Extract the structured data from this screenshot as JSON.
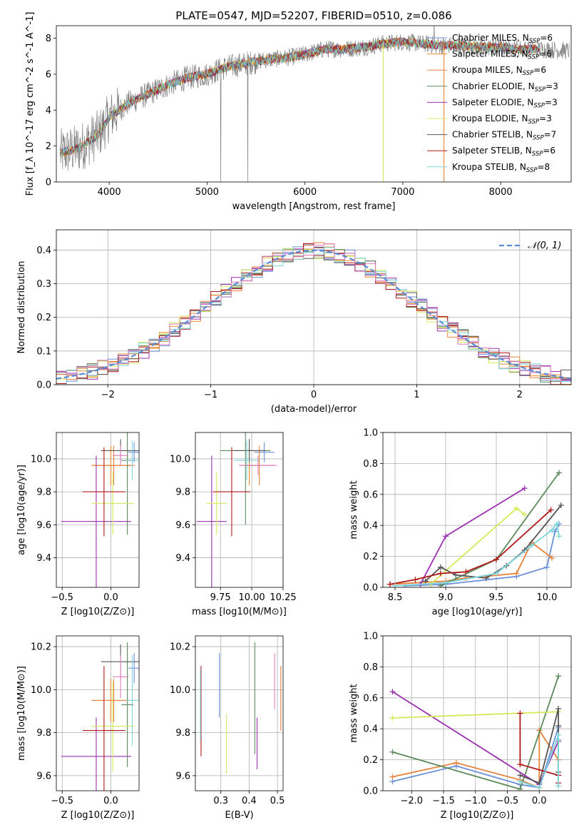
{
  "figure_title": "PLATE=0547, MJD=52207, FIBERID=0510, z=0.086",
  "palette": {
    "Chabrier MILES": "#6a8fd8",
    "Salpeter MILES": "#e9872f",
    "Kroupa MILES": "#e8813a",
    "Chabrier ELODIE": "#5a8a5a",
    "Salpeter ELODIE": "#9b30b0",
    "Kroupa ELODIE": "#d7e85a",
    "Chabrier STELIB": "#555555",
    "Salpeter STELIB": "#b01818",
    "Kroupa STELIB": "#7dd6dc",
    "data": "#808080",
    "normal": "#5b8ad6",
    "extra_pink": "#e07fbf"
  },
  "chart_data": [
    {
      "id": "spectrum",
      "type": "line",
      "title": "PLATE=0547, MJD=52207, FIBERID=0510, z=0.086",
      "xlabel": "wavelength [Angstrom, rest frame]",
      "ylabel": "Flux [f_λ 10^-17 erg cm^-2 s^-1 A^-1]",
      "xlim": [
        3460,
        8720
      ],
      "ylim": [
        0,
        8.7
      ],
      "xticks": [
        4000,
        5000,
        6000,
        7000,
        8000
      ],
      "yticks": [
        0,
        2,
        4,
        6,
        8
      ],
      "grid": false,
      "legend_position": "top-right",
      "legend": [
        {
          "name": "Chabrier MILES",
          "nssp": "6"
        },
        {
          "name": "Salpeter MILES",
          "nssp": "6"
        },
        {
          "name": "Kroupa MILES",
          "nssp": "6"
        },
        {
          "name": "Chabrier ELODIE",
          "nssp": "3"
        },
        {
          "name": "Salpeter ELODIE",
          "nssp": "3"
        },
        {
          "name": "Kroupa ELODIE",
          "nssp": "3"
        },
        {
          "name": "Chabrier STELIB",
          "nssp": "7"
        },
        {
          "name": "Salpeter STELIB",
          "nssp": "6"
        },
        {
          "name": "Kroupa STELIB",
          "nssp": "8"
        }
      ],
      "continuum_x": [
        3500,
        3700,
        3900,
        4000,
        4200,
        4400,
        4600,
        4800,
        5000,
        5200,
        5400,
        5600,
        5800,
        6000,
        6200,
        6400,
        6600,
        6800,
        7000,
        7200,
        7400,
        7600,
        7800,
        8000,
        8200,
        8400,
        8700
      ],
      "continuum_y": [
        1.6,
        1.9,
        2.7,
        3.6,
        4.4,
        4.9,
        5.4,
        5.8,
        6.0,
        6.4,
        6.6,
        6.8,
        6.9,
        7.1,
        7.4,
        7.4,
        7.5,
        7.7,
        7.8,
        7.7,
        7.6,
        7.6,
        7.5,
        7.5,
        7.4,
        7.4,
        7.3
      ],
      "model_max_x": 8400
    },
    {
      "id": "residuals",
      "type": "histogram",
      "xlabel": "(data-model)/error",
      "ylabel": "Normed distribution",
      "xlim": [
        -2.5,
        2.5
      ],
      "ylim": [
        0,
        0.46
      ],
      "xticks": [
        -2,
        -1,
        0,
        1,
        2
      ],
      "yticks": [
        0.0,
        0.1,
        0.2,
        0.3,
        0.4
      ],
      "grid": true,
      "legend_position": "top-right",
      "legend": [
        {
          "name": "𝒩(0, 1)"
        }
      ],
      "bin_width": 0.1,
      "reference": {
        "type": "normal",
        "mean": 0,
        "sigma": 1
      }
    },
    {
      "id": "age_vs_Z",
      "type": "errorbar",
      "xlabel": "Z [log10(Z/Z⊙)]",
      "ylabel": "age [log10(age/yr)]",
      "xlim": [
        -0.56,
        0.29
      ],
      "ylim": [
        9.22,
        10.16
      ],
      "xticks": [
        -0.5,
        0.0
      ],
      "yticks": [
        9.4,
        9.6,
        9.8,
        10.0
      ],
      "grid": true,
      "points": [
        {
          "model": "Chabrier MILES",
          "x": 0.24,
          "xerr": 0.06,
          "y": 10.04,
          "yerr": 0.06
        },
        {
          "model": "Salpeter MILES",
          "x": 0.0,
          "xerr": 0.2,
          "y": 9.96,
          "yerr": 0.12
        },
        {
          "model": "Kroupa MILES",
          "x": 0.03,
          "xerr": 0.22,
          "y": 9.96,
          "yerr": 0.12
        },
        {
          "model": "Chabrier ELODIE",
          "x": 0.17,
          "xerr": 0.06,
          "y": 9.99,
          "yerr": 0.45
        },
        {
          "model": "Salpeter ELODIE",
          "x": -0.15,
          "xerr": 0.36,
          "y": 9.62,
          "yerr": 0.4
        },
        {
          "model": "Kroupa ELODIE",
          "x": 0.02,
          "xerr": 0.22,
          "y": 9.73,
          "yerr": 0.19
        },
        {
          "model": "Chabrier STELIB",
          "x": 0.1,
          "xerr": 0.2,
          "y": 10.05,
          "yerr": 0.07
        },
        {
          "model": "Salpeter STELIB",
          "x": -0.07,
          "xerr": 0.22,
          "y": 9.8,
          "yerr": 0.27
        },
        {
          "model": "Kroupa STELIB",
          "x": 0.22,
          "xerr": 0.06,
          "y": 9.99,
          "yerr": 0.12
        },
        {
          "model": "extra_pink",
          "x": 0.1,
          "xerr": 0.08,
          "y": 10.02,
          "yerr": 0.06
        }
      ]
    },
    {
      "id": "age_vs_mass",
      "type": "errorbar",
      "xlabel": "mass [log10(M/M⊙)]",
      "ylabel": "",
      "xlim": [
        9.55,
        10.25
      ],
      "ylim": [
        9.22,
        10.16
      ],
      "xticks": [
        9.75,
        10.0,
        10.25
      ],
      "yticks": [
        9.4,
        9.6,
        9.8,
        10.0
      ],
      "grid": true,
      "points": [
        {
          "model": "Chabrier MILES",
          "x": 10.1,
          "xerr": 0.08,
          "y": 10.04,
          "yerr": 0.06
        },
        {
          "model": "Salpeter MILES",
          "x": 9.98,
          "xerr": 0.08,
          "y": 9.96,
          "yerr": 0.12
        },
        {
          "model": "Kroupa MILES",
          "x": 10.06,
          "xerr": 0.12,
          "y": 9.96,
          "yerr": 0.12
        },
        {
          "model": "Chabrier ELODIE",
          "x": 9.95,
          "xerr": 0.2,
          "y": 10.05,
          "yerr": 0.45
        },
        {
          "model": "Salpeter ELODIE",
          "x": 9.68,
          "xerr": 0.12,
          "y": 9.62,
          "yerr": 0.4
        },
        {
          "model": "Kroupa ELODIE",
          "x": 9.72,
          "xerr": 0.08,
          "y": 9.73,
          "yerr": 0.19
        },
        {
          "model": "Chabrier STELIB",
          "x": 9.98,
          "xerr": 0.13,
          "y": 10.05,
          "yerr": 0.07
        },
        {
          "model": "Salpeter STELIB",
          "x": 9.84,
          "xerr": 0.15,
          "y": 9.8,
          "yerr": 0.27
        },
        {
          "model": "Kroupa STELIB",
          "x": 9.96,
          "xerr": 0.1,
          "y": 9.99,
          "yerr": 0.12
        },
        {
          "model": "extra_pink",
          "x": 10.05,
          "xerr": 0.15,
          "y": 9.96,
          "yerr": 0.06
        }
      ]
    },
    {
      "id": "weight_vs_age",
      "type": "line",
      "xlabel": "age [log10(age/yr)]",
      "ylabel": "mass weight",
      "xlim": [
        8.38,
        10.24
      ],
      "ylim": [
        0,
        1.0
      ],
      "xticks": [
        8.5,
        9.0,
        9.5,
        10.0
      ],
      "yticks": [
        0.0,
        0.2,
        0.4,
        0.6,
        0.8,
        1.0
      ],
      "grid": true,
      "series": [
        {
          "model": "Chabrier MILES",
          "x": [
            8.6,
            9.0,
            9.7,
            10.0,
            10.08,
            10.12
          ],
          "y": [
            0.01,
            0.02,
            0.07,
            0.13,
            0.36,
            0.41
          ]
        },
        {
          "model": "Kroupa MILES",
          "x": [
            8.45,
            9.0,
            9.2,
            9.7,
            9.85,
            10.05
          ],
          "y": [
            0.02,
            0.04,
            0.06,
            0.09,
            0.29,
            0.19
          ]
        },
        {
          "model": "Chabrier ELODIE",
          "x": [
            8.95,
            9.5,
            10.12
          ],
          "y": [
            0.01,
            0.18,
            0.74
          ]
        },
        {
          "model": "Salpeter ELODIE",
          "x": [
            8.75,
            9.0,
            9.78
          ],
          "y": [
            0.02,
            0.33,
            0.64
          ]
        },
        {
          "model": "Kroupa ELODIE",
          "x": [
            8.85,
            9.7,
            9.78
          ],
          "y": [
            0.02,
            0.51,
            0.47
          ]
        },
        {
          "model": "Chabrier STELIB",
          "x": [
            8.8,
            8.95,
            9.1,
            9.4,
            9.6,
            9.78,
            10.14
          ],
          "y": [
            0.04,
            0.13,
            0.08,
            0.06,
            0.14,
            0.24,
            0.53
          ]
        },
        {
          "model": "Salpeter STELIB",
          "x": [
            8.45,
            8.7,
            8.95,
            9.2,
            9.5,
            10.04
          ],
          "y": [
            0.02,
            0.05,
            0.09,
            0.1,
            0.18,
            0.5
          ]
        },
        {
          "model": "Kroupa STELIB",
          "x": [
            8.5,
            9.0,
            9.5,
            9.85,
            10.05,
            10.1,
            10.12
          ],
          "y": [
            0.01,
            0.03,
            0.09,
            0.27,
            0.37,
            0.41,
            0.33
          ]
        }
      ]
    },
    {
      "id": "mass_vs_Z",
      "type": "errorbar",
      "xlabel": "Z [log10(Z/Z⊙)]",
      "ylabel": "mass [log10(M/M⊙)]",
      "xlim": [
        -0.56,
        0.29
      ],
      "ylim": [
        9.53,
        10.25
      ],
      "xticks": [
        -0.5,
        0.0
      ],
      "yticks": [
        9.6,
        9.8,
        10.0,
        10.2
      ],
      "grid": true,
      "points": [
        {
          "model": "Chabrier MILES",
          "x": 0.24,
          "xerr": 0.06,
          "y": 10.1,
          "yerr": 0.07
        },
        {
          "model": "Salpeter MILES",
          "x": 0.0,
          "xerr": 0.2,
          "y": 9.95,
          "yerr": 0.1
        },
        {
          "model": "Kroupa MILES",
          "x": 0.03,
          "xerr": 0.22,
          "y": 9.95,
          "yerr": 0.1
        },
        {
          "model": "Chabrier ELODIE",
          "x": 0.17,
          "xerr": 0.06,
          "y": 9.93,
          "yerr": 0.29
        },
        {
          "model": "Salpeter ELODIE",
          "x": -0.15,
          "xerr": 0.36,
          "y": 9.69,
          "yerr": 0.18
        },
        {
          "model": "Kroupa ELODIE",
          "x": 0.02,
          "xerr": 0.22,
          "y": 9.83,
          "yerr": 0.21
        },
        {
          "model": "Chabrier STELIB",
          "x": 0.1,
          "xerr": 0.2,
          "y": 10.13,
          "yerr": 0.08
        },
        {
          "model": "Salpeter STELIB",
          "x": -0.07,
          "xerr": 0.22,
          "y": 9.81,
          "yerr": 0.3
        },
        {
          "model": "Kroupa STELIB",
          "x": 0.22,
          "xerr": 0.06,
          "y": 9.95,
          "yerr": 0.21
        },
        {
          "model": "extra_pink",
          "x": 0.1,
          "xerr": 0.08,
          "y": 10.06,
          "yerr": 0.1
        }
      ]
    },
    {
      "id": "mass_vs_ebv",
      "type": "errorbar",
      "xlabel": "E(B-V)",
      "ylabel": "",
      "xlim": [
        0.21,
        0.52
      ],
      "ylim": [
        9.53,
        10.25
      ],
      "xticks": [
        0.3,
        0.4,
        0.5
      ],
      "yticks": [
        9.6,
        9.8,
        10.0,
        10.2
      ],
      "grid": true,
      "points": [
        {
          "model": "Chabrier MILES",
          "x": 0.295,
          "y": 10.02,
          "yerr": 0.15
        },
        {
          "model": "Kroupa MILES",
          "x": 0.512,
          "y": 9.96,
          "yerr": 0.15
        },
        {
          "model": "Chabrier ELODIE",
          "x": 0.42,
          "y": 9.96,
          "yerr": 0.26
        },
        {
          "model": "Salpeter ELODIE",
          "x": 0.428,
          "y": 9.75,
          "yerr": 0.12
        },
        {
          "model": "Kroupa ELODIE",
          "x": 0.32,
          "y": 9.75,
          "yerr": 0.14
        },
        {
          "model": "Salpeter STELIB",
          "x": 0.23,
          "y": 9.9,
          "yerr": 0.21
        },
        {
          "model": "Kroupa STELIB",
          "x": 0.228,
          "y": 9.93,
          "yerr": 0.17
        },
        {
          "model": "extra_pink",
          "x": 0.49,
          "y": 10.04,
          "yerr": 0.13
        }
      ]
    },
    {
      "id": "weight_vs_Z",
      "type": "line",
      "xlabel": "Z [log10(Z/Z⊙)]",
      "ylabel": "mass weight",
      "xlim": [
        -2.45,
        0.5
      ],
      "ylim": [
        0,
        1.0
      ],
      "xticks": [
        -2.0,
        -1.5,
        -1.0,
        -0.5,
        0.0
      ],
      "yticks": [
        0.0,
        0.2,
        0.4,
        0.6,
        0.8,
        1.0
      ],
      "grid": true,
      "series": [
        {
          "model": "Chabrier MILES",
          "x": [
            -2.3,
            -1.3,
            -0.3,
            0.0,
            0.3
          ],
          "y": [
            0.06,
            0.16,
            0.04,
            0.02,
            0.41
          ]
        },
        {
          "model": "Kroupa MILES",
          "x": [
            -2.3,
            -1.3,
            -0.3,
            0.0,
            0.0,
            0.3
          ],
          "y": [
            0.09,
            0.18,
            0.07,
            0.02,
            0.39,
            0.2
          ]
        },
        {
          "model": "Chabrier ELODIE",
          "x": [
            -2.3,
            -0.3,
            0.3
          ],
          "y": [
            0.25,
            0.01,
            0.74
          ]
        },
        {
          "model": "Salpeter ELODIE",
          "x": [
            -2.3,
            0.0,
            0.3
          ],
          "y": [
            0.64,
            0.04,
            0.32
          ]
        },
        {
          "model": "Kroupa ELODIE",
          "x": [
            -2.3,
            0.3
          ],
          "y": [
            0.47,
            0.51
          ]
        },
        {
          "model": "Chabrier STELIB",
          "x": [
            -0.3,
            0.0,
            0.3,
            0.3,
            0.3
          ],
          "y": [
            0.1,
            0.05,
            0.53,
            0.42,
            0.12
          ]
        },
        {
          "model": "Salpeter STELIB",
          "x": [
            -0.3,
            -0.3,
            0.3,
            0.3
          ],
          "y": [
            0.5,
            0.17,
            0.1,
            0.05
          ]
        },
        {
          "model": "Kroupa STELIB",
          "x": [
            -0.3,
            0.0,
            0.3,
            0.3,
            0.3
          ],
          "y": [
            0.06,
            0.02,
            0.36,
            0.33,
            0.03
          ]
        }
      ]
    }
  ]
}
